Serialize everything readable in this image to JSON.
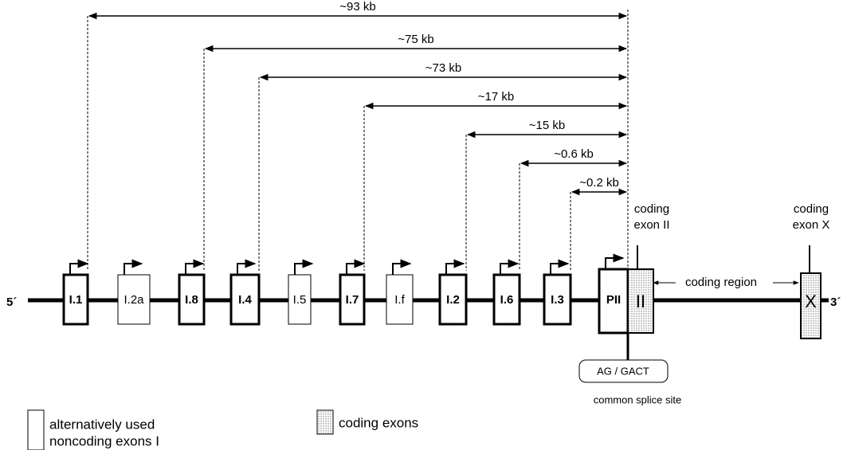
{
  "distances": [
    "~93 kb",
    "~75 kb",
    "~73 kb",
    "~17 kb",
    "~15 kb",
    "~0.6 kb",
    "~0.2 kb"
  ],
  "exons": [
    "I.1",
    "I.2a",
    "I.8",
    "I.4",
    "I.5",
    "I.7",
    "I.f",
    "I.2",
    "I.6",
    "I.3",
    "PII"
  ],
  "coding_exons": [
    "II",
    "X"
  ],
  "ends": {
    "five": "5´",
    "three": "3´"
  },
  "labels": {
    "coding_exon_2": [
      "coding",
      "exon II"
    ],
    "coding_exon_x": [
      "coding",
      "exon X"
    ],
    "coding_region": "coding region",
    "splice_box": "AG / GACT",
    "splice_site": "common splice site"
  },
  "legend": {
    "noncoding": [
      "alternatively used",
      "noncoding exons I"
    ],
    "coding": "coding exons"
  }
}
